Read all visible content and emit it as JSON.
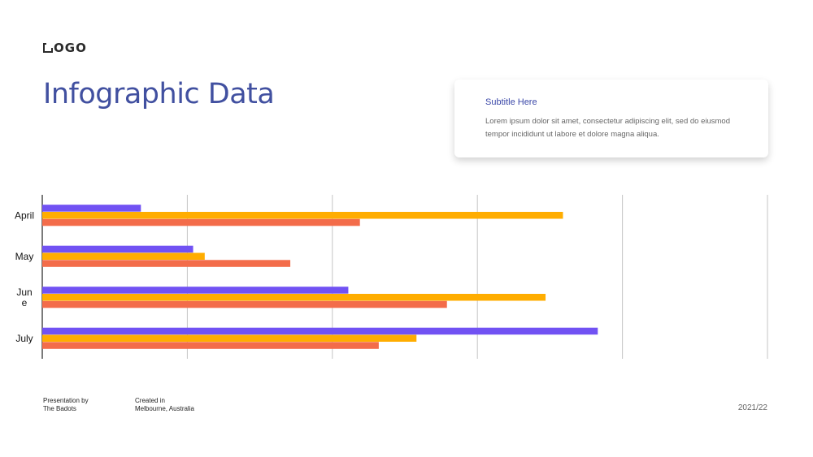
{
  "logo": {
    "text": "OGO"
  },
  "title": "Infographic Data",
  "card": {
    "subtitle": "Subtitle Here",
    "body": "Lorem ipsum dolor sit amet, consectetur adipiscing elit, sed do eiusmod tempor incididunt ut labore et dolore magna aliqua."
  },
  "footer": {
    "presented_label": "Presentation by",
    "presented_value": "The Badots",
    "created_label": "Created in",
    "created_value": "Melbourne, Australia",
    "year": "2021/22"
  },
  "chart_data": {
    "type": "bar",
    "orientation": "horizontal",
    "categories": [
      "April",
      "May",
      "June",
      "July"
    ],
    "category_labels": [
      [
        "April"
      ],
      [
        "May"
      ],
      [
        "Jun",
        "e"
      ],
      [
        "July"
      ]
    ],
    "series": [
      {
        "color": "#7152f3",
        "values": [
          6.8,
          10.4,
          21.1,
          38.3
        ]
      },
      {
        "color": "#ffad00",
        "values": [
          35.9,
          11.2,
          34.7,
          25.8
        ]
      },
      {
        "color": "#f36c4a",
        "values": [
          21.9,
          17.1,
          27.9,
          23.2
        ]
      }
    ],
    "xlim": [
      0,
      50
    ],
    "gridlines": true,
    "legend": false
  }
}
